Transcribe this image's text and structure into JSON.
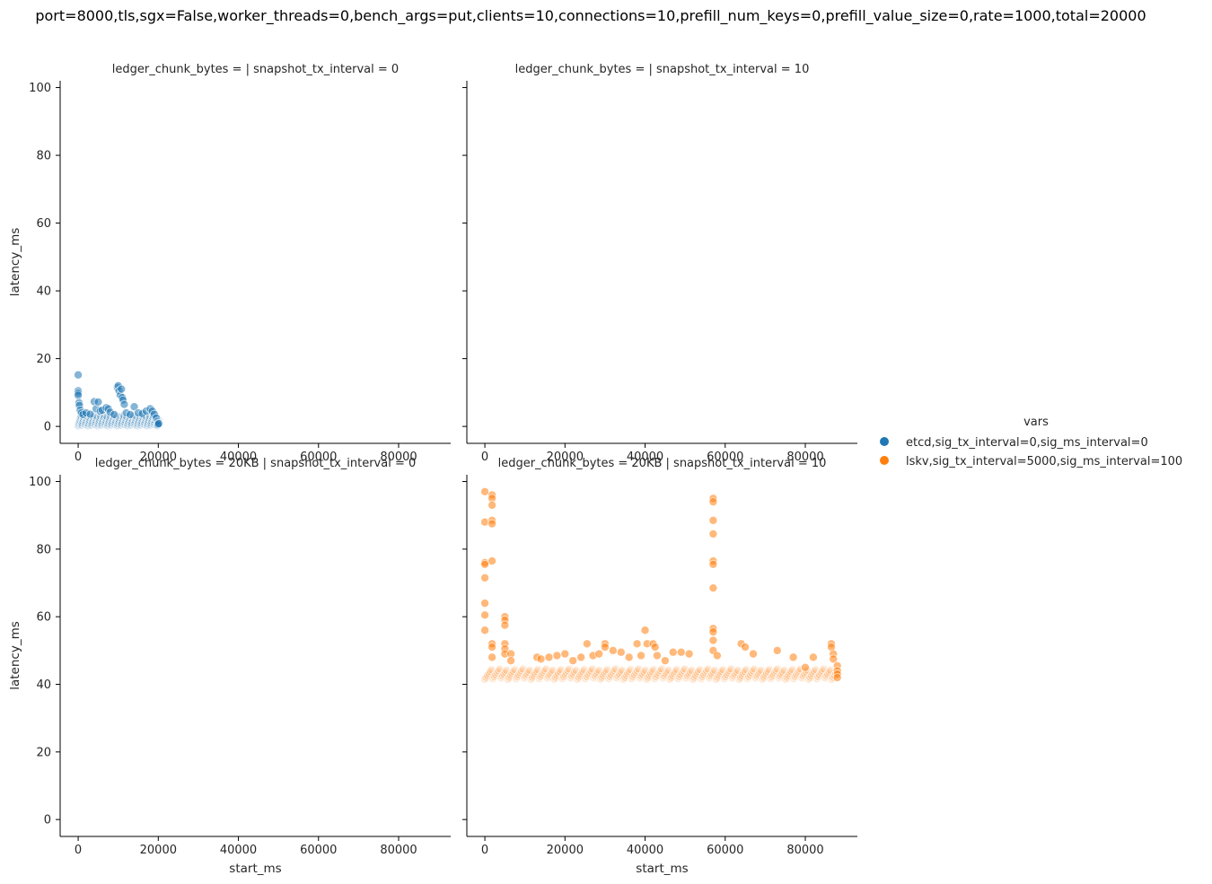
{
  "suptitle": "port=8000,tls,sgx=False,worker_threads=0,bench_args=put,clients=10,connections=10,prefill_num_keys=0,prefill_value_size=0,rate=1000,total=20000",
  "legend": {
    "title": "vars",
    "entries": [
      {
        "label": "etcd,sig_tx_interval=0,sig_ms_interval=0",
        "color": "#1f77b4"
      },
      {
        "label": "lskv,sig_tx_interval=5000,sig_ms_interval=100",
        "color": "#ff7f0e"
      }
    ]
  },
  "chart_data": {
    "type": "scatter",
    "xlabel": "start_ms",
    "ylabel": "latency_ms",
    "xlim": [
      -4500,
      93000
    ],
    "ylim": [
      -5,
      102
    ],
    "xticks": [
      0,
      20000,
      40000,
      60000,
      80000
    ],
    "yticks": [
      0,
      20,
      40,
      60,
      80,
      100
    ],
    "xtick_labels": [
      "0",
      "20000",
      "40000",
      "60000",
      "80000"
    ],
    "ytick_labels": [
      "0",
      "20",
      "40",
      "60",
      "80",
      "100"
    ],
    "panels": [
      {
        "title": "ledger_chunk_bytes =  | snapshot_tx_interval = 0",
        "series": [
          {
            "name": "etcd,sig_tx_interval=0,sig_ms_interval=0",
            "color": "#1f77b4",
            "points": [
              [
                0,
                15.2
              ],
              [
                0,
                10.5
              ],
              [
                0,
                9.8
              ],
              [
                0,
                9.2
              ],
              [
                200,
                7.0
              ],
              [
                300,
                6.2
              ],
              [
                500,
                4.8
              ],
              [
                800,
                4.0
              ],
              [
                1200,
                3.5
              ],
              [
                2000,
                4.0
              ],
              [
                3000,
                3.6
              ],
              [
                4000,
                7.3
              ],
              [
                4500,
                5.2
              ],
              [
                5000,
                7.2
              ],
              [
                5500,
                4.5
              ],
              [
                6000,
                4.8
              ],
              [
                7000,
                5.5
              ],
              [
                7500,
                5.2
              ],
              [
                8000,
                4.2
              ],
              [
                9000,
                3.5
              ],
              [
                9800,
                11.5
              ],
              [
                10000,
                12.0
              ],
              [
                10200,
                10.5
              ],
              [
                10500,
                9.2
              ],
              [
                10800,
                11.0
              ],
              [
                11000,
                8.5
              ],
              [
                11200,
                7.8
              ],
              [
                11500,
                6.5
              ],
              [
                12000,
                4.0
              ],
              [
                13000,
                3.5
              ],
              [
                14000,
                5.8
              ],
              [
                15000,
                4.0
              ],
              [
                16000,
                3.8
              ],
              [
                17000,
                4.5
              ],
              [
                18000,
                5.2
              ],
              [
                18500,
                4.5
              ],
              [
                19000,
                3.6
              ],
              [
                19500,
                2.5
              ],
              [
                19800,
                1.5
              ],
              [
                20000,
                1.0
              ],
              [
                19900,
                0.5
              ],
              [
                20100,
                0.8
              ]
            ]
          }
        ]
      },
      {
        "title": "ledger_chunk_bytes =  | snapshot_tx_interval = 10",
        "series": []
      },
      {
        "title": "ledger_chunk_bytes = 20KB | snapshot_tx_interval = 0",
        "series": []
      },
      {
        "title": "ledger_chunk_bytes = 20KB | snapshot_tx_interval = 10",
        "series": [
          {
            "name": "lskv,sig_tx_interval=5000,sig_ms_interval=100",
            "color": "#ff7f0e",
            "points": [
              [
                0,
                97.0
              ],
              [
                0,
                88.0
              ],
              [
                0,
                76.0
              ],
              [
                0,
                75.5
              ],
              [
                0,
                71.5
              ],
              [
                0,
                64.0
              ],
              [
                0,
                60.5
              ],
              [
                0,
                56.0
              ],
              [
                1800,
                96.0
              ],
              [
                1800,
                95.0
              ],
              [
                1800,
                93.0
              ],
              [
                1800,
                88.5
              ],
              [
                1800,
                87.5
              ],
              [
                1800,
                76.5
              ],
              [
                1800,
                52.0
              ],
              [
                1800,
                51.0
              ],
              [
                1800,
                48.0
              ],
              [
                5000,
                60.0
              ],
              [
                5000,
                59.0
              ],
              [
                5000,
                57.5
              ],
              [
                5000,
                52.0
              ],
              [
                5000,
                50.5
              ],
              [
                5000,
                49.0
              ],
              [
                6500,
                49.0
              ],
              [
                6500,
                47.0
              ],
              [
                13000,
                48.0
              ],
              [
                14000,
                47.5
              ],
              [
                16000,
                48.0
              ],
              [
                18000,
                48.5
              ],
              [
                20000,
                49.0
              ],
              [
                22000,
                47.0
              ],
              [
                24000,
                48.0
              ],
              [
                25500,
                52.0
              ],
              [
                27000,
                48.5
              ],
              [
                28500,
                49.0
              ],
              [
                30000,
                52.0
              ],
              [
                30000,
                51.0
              ],
              [
                32000,
                50.0
              ],
              [
                34000,
                49.5
              ],
              [
                36000,
                48.0
              ],
              [
                38000,
                52.0
              ],
              [
                39000,
                48.5
              ],
              [
                40000,
                56.0
              ],
              [
                40500,
                52.0
              ],
              [
                42000,
                52.0
              ],
              [
                42500,
                51.0
              ],
              [
                43000,
                48.5
              ],
              [
                45000,
                47.0
              ],
              [
                47000,
                49.5
              ],
              [
                49000,
                49.5
              ],
              [
                51000,
                49.0
              ],
              [
                57000,
                95.0
              ],
              [
                57000,
                94.0
              ],
              [
                57000,
                88.5
              ],
              [
                57000,
                84.5
              ],
              [
                57000,
                76.5
              ],
              [
                57000,
                75.5
              ],
              [
                57000,
                68.5
              ],
              [
                57000,
                56.5
              ],
              [
                57000,
                55.5
              ],
              [
                57000,
                53.0
              ],
              [
                57000,
                50.0
              ],
              [
                58000,
                48.5
              ],
              [
                64000,
                52.0
              ],
              [
                65000,
                51.0
              ],
              [
                67000,
                49.0
              ],
              [
                73000,
                50.0
              ],
              [
                77000,
                48.0
              ],
              [
                80000,
                45.0
              ],
              [
                82000,
                48.0
              ],
              [
                86500,
                52.0
              ],
              [
                86500,
                51.0
              ],
              [
                87000,
                49.0
              ],
              [
                87000,
                47.5
              ],
              [
                88000,
                45.5
              ],
              [
                88000,
                44.0
              ],
              [
                88000,
                43.0
              ],
              [
                88000,
                42.0
              ]
            ]
          }
        ]
      }
    ]
  }
}
